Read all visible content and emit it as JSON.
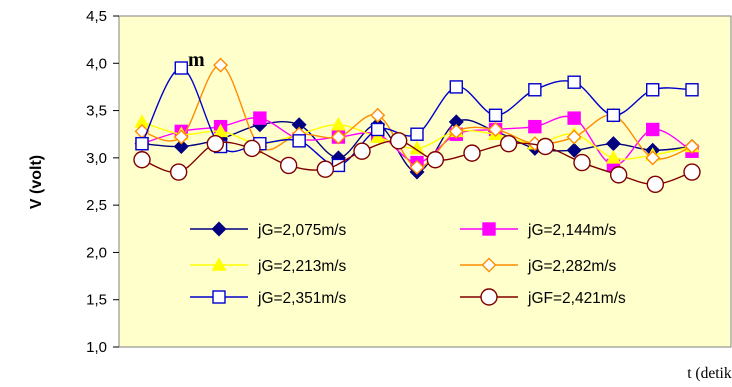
{
  "chart_data": {
    "type": "line",
    "title": "",
    "xlabel": "t (detik)",
    "ylabel": "V (volt)",
    "ylim": [
      1.0,
      4.5
    ],
    "yticks": [
      "1,0",
      "1,5",
      "2,0",
      "2,5",
      "3,0",
      "3,5",
      "4,0",
      "4,5"
    ],
    "grid": "off",
    "legend_placement": "lower-center",
    "annotation": "m",
    "plot_background": "#ffffcc",
    "series": [
      {
        "name": "jG=2,075m/s",
        "color": "#000080",
        "marker": "diamond-filled",
        "values": [
          3.15,
          3.12,
          3.2,
          3.35,
          3.35,
          3.0,
          3.35,
          2.85,
          3.38,
          3.28,
          3.1,
          3.08,
          3.15,
          3.08,
          3.12
        ]
      },
      {
        "name": "jG=2,144m/s",
        "color": "#ff00ff",
        "marker": "square-filled",
        "values": [
          3.15,
          3.28,
          3.33,
          3.42,
          3.2,
          3.22,
          3.25,
          2.95,
          3.25,
          3.3,
          3.33,
          3.42,
          2.92,
          3.3,
          3.07
        ]
      },
      {
        "name": "jG=2,213m/s",
        "color": "#ffff00",
        "marker": "triangle-filled",
        "values": [
          3.38,
          3.25,
          3.28,
          3.15,
          3.25,
          3.35,
          3.22,
          3.1,
          3.28,
          3.25,
          3.15,
          3.25,
          3.0,
          3.03,
          3.12
        ]
      },
      {
        "name": "jG=2,282m/s",
        "color": "#ff8c00",
        "marker": "diamond-open",
        "values": [
          3.28,
          3.22,
          3.98,
          3.12,
          3.25,
          3.22,
          3.45,
          2.9,
          3.28,
          3.3,
          3.15,
          3.22,
          3.45,
          3.0,
          3.12
        ]
      },
      {
        "name": "jG=2,351m/s",
        "color": "#0000cc",
        "marker": "square-open",
        "values": [
          3.15,
          3.95,
          3.12,
          3.15,
          3.18,
          2.92,
          3.3,
          3.25,
          3.75,
          3.45,
          3.72,
          3.8,
          3.45,
          3.72,
          3.72
        ]
      },
      {
        "name": "jGF=2,421m/s",
        "color": "#800000",
        "marker": "circle-open",
        "values": [
          2.98,
          2.85,
          3.15,
          3.1,
          2.92,
          2.88,
          3.07,
          3.18,
          2.98,
          3.05,
          3.15,
          3.12,
          2.95,
          2.82,
          2.72,
          2.85
        ]
      }
    ]
  }
}
